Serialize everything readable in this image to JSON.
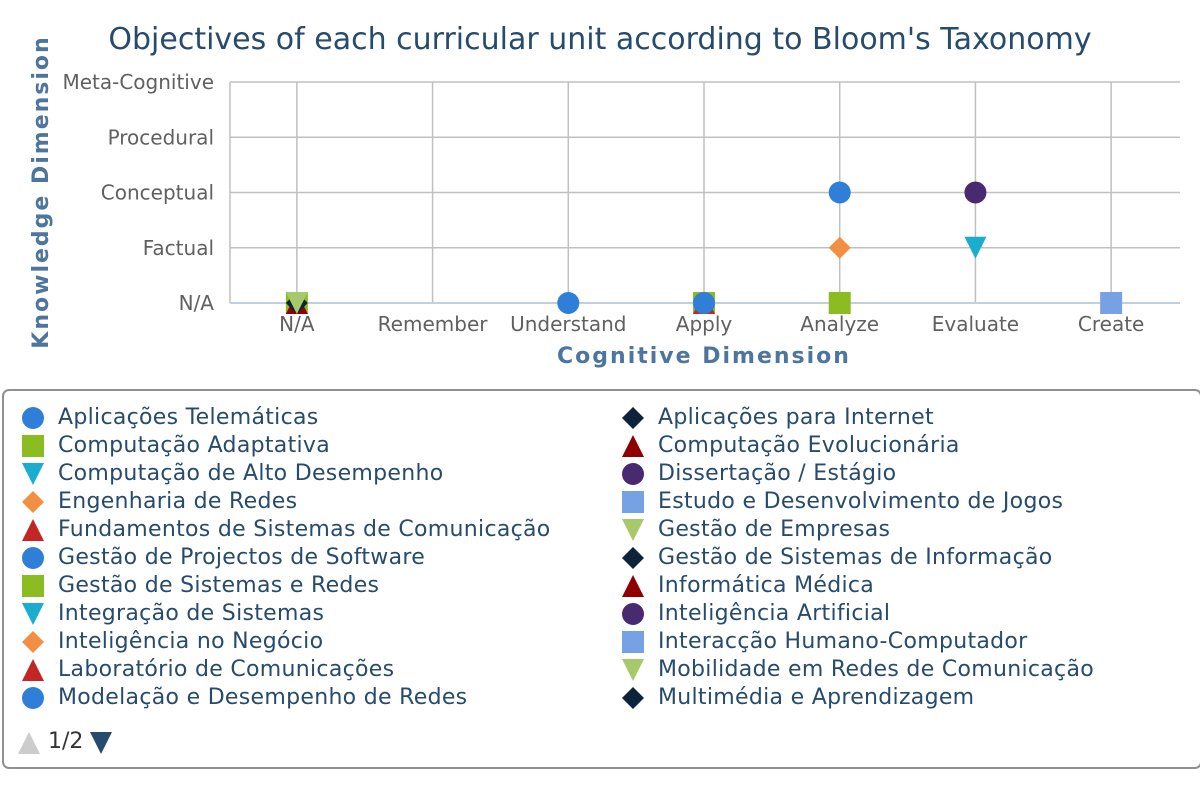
{
  "chart_data": {
    "type": "scatter",
    "title": "Objectives of each curricular unit according to Bloom's Taxonomy",
    "xlabel": "Cognitive Dimension",
    "ylabel": "Knowledge Dimension",
    "x_categories": [
      "N/A",
      "Remember",
      "Understand",
      "Apply",
      "Analyze",
      "Evaluate",
      "Create"
    ],
    "y_categories": [
      "N/A",
      "Factual",
      "Conceptual",
      "Procedural",
      "Meta-Cognitive"
    ],
    "grid": true,
    "legend_position": "bottom",
    "points": [
      {
        "x": "N/A",
        "y": "N/A",
        "marker": "square",
        "color": "#8bbc21"
      },
      {
        "x": "N/A",
        "y": "N/A",
        "marker": "triangle",
        "color": "#910000"
      },
      {
        "x": "N/A",
        "y": "N/A",
        "marker": "diamond",
        "color": "#0d233a"
      },
      {
        "x": "N/A",
        "y": "N/A",
        "marker": "triangle-down",
        "color": "#a6c96a"
      },
      {
        "x": "Understand",
        "y": "N/A",
        "marker": "circle",
        "color": "#2f7ed8"
      },
      {
        "x": "Apply",
        "y": "N/A",
        "marker": "square",
        "color": "#8bbc21"
      },
      {
        "x": "Apply",
        "y": "N/A",
        "marker": "triangle",
        "color": "#c42525"
      },
      {
        "x": "Apply",
        "y": "N/A",
        "marker": "circle",
        "color": "#2f7ed8"
      },
      {
        "x": "Analyze",
        "y": "Conceptual",
        "marker": "circle",
        "color": "#2f7ed8"
      },
      {
        "x": "Analyze",
        "y": "Factual",
        "marker": "diamond",
        "color": "#f28f43"
      },
      {
        "x": "Analyze",
        "y": "N/A",
        "marker": "square",
        "color": "#8bbc21"
      },
      {
        "x": "Evaluate",
        "y": "Conceptual",
        "marker": "circle",
        "color": "#492970"
      },
      {
        "x": "Evaluate",
        "y": "Factual",
        "marker": "triangle-down",
        "color": "#1aadce"
      },
      {
        "x": "Create",
        "y": "N/A",
        "marker": "square",
        "color": "#77a1e5"
      }
    ]
  },
  "legend": {
    "items": [
      {
        "label": "Aplicações Telemáticas",
        "marker": "circle",
        "color": "#2f7ed8"
      },
      {
        "label": "Aplicações para Internet",
        "marker": "diamond",
        "color": "#0d233a"
      },
      {
        "label": "Computação Adaptativa",
        "marker": "square",
        "color": "#8bbc21"
      },
      {
        "label": "Computação Evolucionária",
        "marker": "triangle",
        "color": "#910000"
      },
      {
        "label": "Computação de Alto Desempenho",
        "marker": "triangle-down",
        "color": "#1aadce"
      },
      {
        "label": "Dissertação / Estágio",
        "marker": "circle",
        "color": "#492970"
      },
      {
        "label": "Engenharia de Redes",
        "marker": "diamond",
        "color": "#f28f43"
      },
      {
        "label": "Estudo e Desenvolvimento de Jogos",
        "marker": "square",
        "color": "#77a1e5"
      },
      {
        "label": "Fundamentos de Sistemas de Comunicação",
        "marker": "triangle",
        "color": "#c42525"
      },
      {
        "label": "Gestão de Empresas",
        "marker": "triangle-down",
        "color": "#a6c96a"
      },
      {
        "label": "Gestão de Projectos de Software",
        "marker": "circle",
        "color": "#2f7ed8"
      },
      {
        "label": "Gestão de Sistemas de Informação",
        "marker": "diamond",
        "color": "#0d233a"
      },
      {
        "label": "Gestão de Sistemas e Redes",
        "marker": "square",
        "color": "#8bbc21"
      },
      {
        "label": "Informática Médica",
        "marker": "triangle",
        "color": "#910000"
      },
      {
        "label": "Integração de Sistemas",
        "marker": "triangle-down",
        "color": "#1aadce"
      },
      {
        "label": "Inteligência Artificial",
        "marker": "circle",
        "color": "#492970"
      },
      {
        "label": "Inteligência no Negócio",
        "marker": "diamond",
        "color": "#f28f43"
      },
      {
        "label": "Interacção Humano-Computador",
        "marker": "square",
        "color": "#77a1e5"
      },
      {
        "label": "Laboratório de Comunicações",
        "marker": "triangle",
        "color": "#c42525"
      },
      {
        "label": "Mobilidade em Redes de Comunicação",
        "marker": "triangle-down",
        "color": "#a6c96a"
      },
      {
        "label": "Modelação e Desempenho de Redes",
        "marker": "circle",
        "color": "#2f7ed8"
      },
      {
        "label": "Multimédia e Aprendizagem",
        "marker": "diamond",
        "color": "#0d233a"
      }
    ],
    "page_text": "1/2",
    "nav_up_color": "#cccccc",
    "nav_down_color": "#274b6d"
  },
  "colors": {
    "title": "#274b6d",
    "axis_title": "#4d759e",
    "tick_label": "#606060",
    "grid": "#c0c0c0",
    "axis_line": "#c0d0e0"
  }
}
